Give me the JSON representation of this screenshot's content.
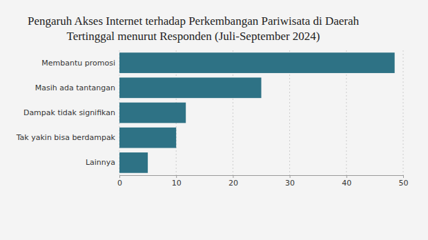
{
  "chart_data": {
    "type": "bar",
    "orientation": "horizontal",
    "title": "Pengaruh Akses Internet terhadap Perkembangan Pariwisata di Daerah Tertinggal menurut Responden (Juli-September 2024)",
    "categories": [
      "Membantu promosi",
      "Masih ada tantangan",
      "Dampak tidak signifikan",
      "Tak yakin bisa berdampak",
      "Lainnya"
    ],
    "values": [
      48.5,
      25,
      11.7,
      10,
      5
    ],
    "color": "#2e7285",
    "xlim": [
      0,
      50
    ],
    "xticks": [
      0,
      10,
      20,
      30,
      40,
      50
    ],
    "grid": true
  }
}
